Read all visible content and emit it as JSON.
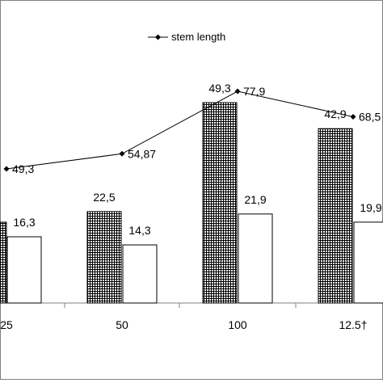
{
  "chart_data": {
    "type": "bar",
    "categories": [
      "25",
      "50",
      "100",
      "12.5†"
    ],
    "series": [
      {
        "kind": "bar",
        "pattern": "crosshatch",
        "values": [
          null,
          22.5,
          49.3,
          42.9
        ],
        "labels": [
          "",
          "22,5",
          "49,3",
          "42,9"
        ]
      },
      {
        "kind": "bar",
        "pattern": "plain",
        "values": [
          16.3,
          14.3,
          21.9,
          19.9
        ],
        "labels": [
          "16,3",
          "14,3",
          "21,9",
          "19,9"
        ]
      },
      {
        "kind": "line",
        "name": "stem length",
        "marker": "diamond",
        "values": [
          49.3,
          54.87,
          77.9,
          68.5
        ],
        "labels": [
          "49,3",
          "54,87",
          "77,9",
          "68,5"
        ]
      }
    ],
    "legend": {
      "position": "top-center",
      "entries": [
        "stem length"
      ]
    },
    "grid": false,
    "colors": {
      "bar_fill": "#ffffff",
      "hatch": "#000000",
      "line": "#000000",
      "axis": "#808080",
      "border": "#808080"
    }
  }
}
